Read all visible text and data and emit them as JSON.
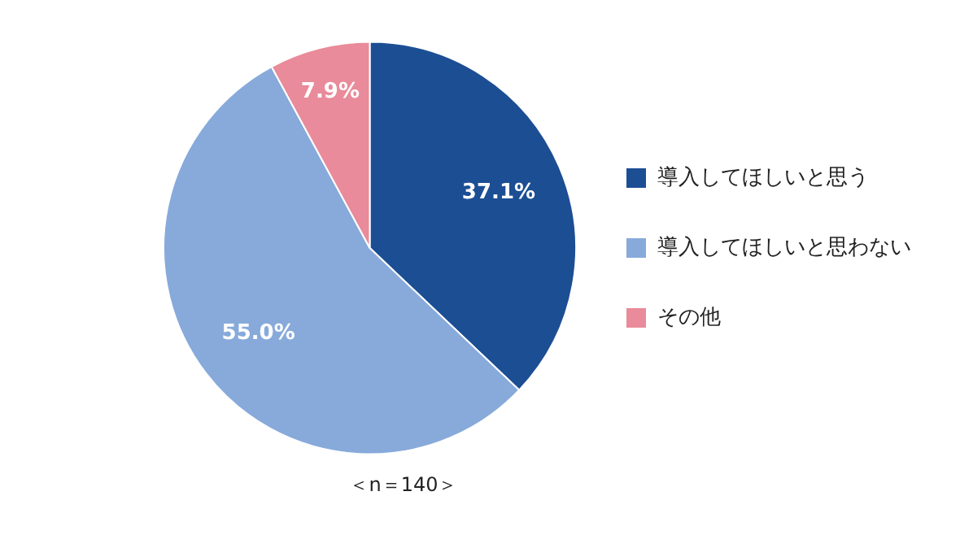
{
  "chart_data": {
    "type": "pie",
    "categories": [
      "導入してほしいと思う",
      "導入してほしいと思わない",
      "その他"
    ],
    "values": [
      37.1,
      55.0,
      7.9
    ],
    "colors": [
      "#1c4e94",
      "#87aadb",
      "#e98b9a"
    ],
    "value_labels": [
      "37.1%",
      "55.0%",
      "7.9%"
    ],
    "legend": "right",
    "annotations": [
      "＜n＝140＞"
    ]
  }
}
